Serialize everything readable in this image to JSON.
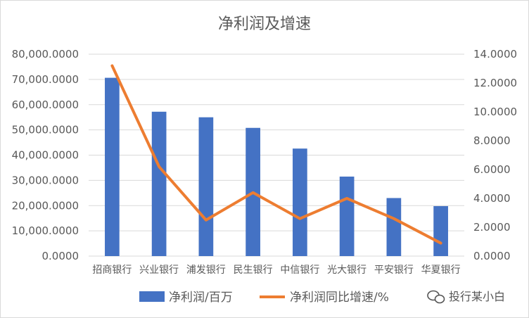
{
  "chart_data": {
    "type": "bar",
    "title": "净利润及增速",
    "categories": [
      "招商银行",
      "兴业银行",
      "浦发银行",
      "民生银行",
      "中信银行",
      "光大银行",
      "平安银行",
      "华夏银行"
    ],
    "series": [
      {
        "name": "净利润/百万",
        "type": "bar",
        "axis": "left",
        "color": "#4472c4",
        "values": [
          70640,
          57200,
          55000,
          50800,
          42600,
          31500,
          23000,
          19800
        ]
      },
      {
        "name": "净利润同比增速/%",
        "type": "line",
        "axis": "right",
        "color": "#ed7d31",
        "values": [
          13.2,
          6.2,
          2.5,
          4.4,
          2.6,
          4.0,
          2.6,
          0.9
        ]
      }
    ],
    "left_axis": {
      "min": 0,
      "max": 80000,
      "step": 10000,
      "tick_labels": [
        "0.0000",
        "10,000.0000",
        "20,000.0000",
        "30,000.0000",
        "40,000.0000",
        "50,000.0000",
        "60,000.0000",
        "70,000.0000",
        "80,000.0000"
      ]
    },
    "right_axis": {
      "min": 0,
      "max": 14,
      "step": 2,
      "tick_labels": [
        "0.0000",
        "2.0000",
        "4.0000",
        "6.0000",
        "8.0000",
        "10.0000",
        "12.0000",
        "14.0000"
      ]
    },
    "grid": true,
    "legend_position": "bottom"
  },
  "watermark": {
    "text": "投行某小白",
    "icon": "wechat-icon"
  }
}
